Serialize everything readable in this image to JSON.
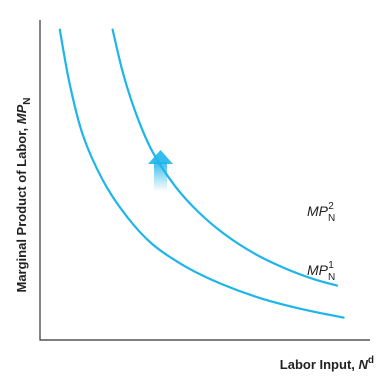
{
  "chart_data": {
    "type": "line",
    "title": "",
    "xlabel": {
      "text": "Labor Input, ",
      "var": "N",
      "sup": "d"
    },
    "ylabel": {
      "text": "Marginal Product of Labor, ",
      "var": "MP",
      "sub": "N"
    },
    "xlim": [
      0,
      10
    ],
    "ylim": [
      0,
      10
    ],
    "grid": false,
    "series": [
      {
        "name": "MP",
        "name_sup": "1",
        "name_sub": "N",
        "color": "#1eb5ea",
        "x": [
          0.6,
          0.9,
          1.3,
          1.9,
          2.6,
          3.4,
          4.4,
          5.5,
          6.7,
          8.0,
          9.2
        ],
        "y": [
          9.7,
          8.0,
          6.4,
          5.0,
          3.9,
          3.0,
          2.3,
          1.75,
          1.3,
          0.95,
          0.7
        ]
      },
      {
        "name": "MP",
        "name_sup": "2",
        "name_sub": "N",
        "color": "#1eb5ea",
        "x": [
          2.2,
          2.5,
          2.9,
          3.4,
          4.1,
          4.8,
          5.6,
          6.5,
          7.4,
          8.3,
          9.0
        ],
        "y": [
          9.7,
          8.4,
          7.1,
          5.9,
          4.8,
          4.0,
          3.3,
          2.7,
          2.25,
          1.9,
          1.7
        ]
      }
    ],
    "annotations": [
      {
        "type": "arrow",
        "direction": "up",
        "color": "#7fd0f2"
      }
    ]
  }
}
